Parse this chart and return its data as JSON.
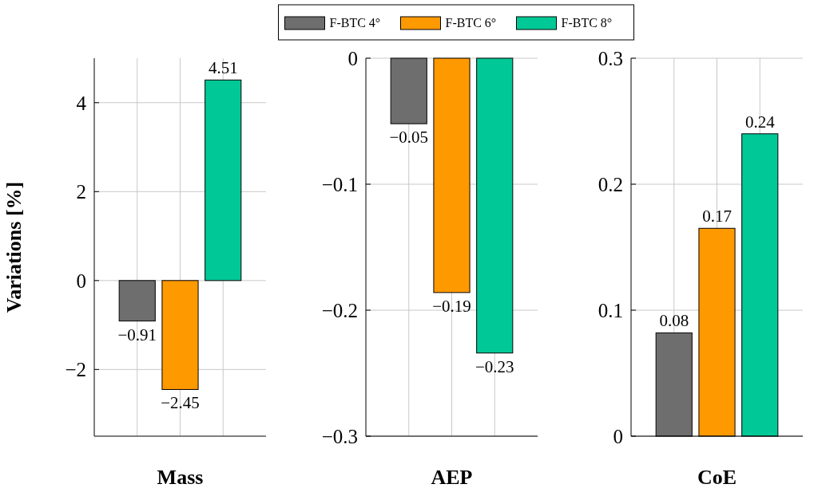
{
  "chart_data": [
    {
      "type": "bar",
      "xlabel": "Mass",
      "ylabel": "Variations [%]",
      "categories": [
        null
      ],
      "legend": "top",
      "grid": true,
      "ylim": [
        -3.5,
        5
      ],
      "yticks": [
        {
          "value": -2,
          "label": "−2"
        },
        0,
        2,
        4
      ],
      "series": [
        {
          "name": "F-BTC 4°",
          "color": "#6e6e6e",
          "values": [
            -0.91
          ],
          "value_labels": [
            "−0.91"
          ]
        },
        {
          "name": "F-BTC 6°",
          "color": "#ff9900",
          "values": [
            -2.45
          ],
          "value_labels": [
            "−2.45"
          ]
        },
        {
          "name": "F-BTC 8°",
          "color": "#00c896",
          "values": [
            4.51
          ],
          "value_labels": [
            "4.51"
          ]
        }
      ]
    },
    {
      "type": "bar",
      "xlabel": "AEP",
      "categories": [
        null
      ],
      "grid": true,
      "ylim": [
        -0.3,
        0
      ],
      "yticks": [
        {
          "value": -0.3,
          "label": "−0.3"
        },
        {
          "value": -0.2,
          "label": "−0.2"
        },
        {
          "value": -0.1,
          "label": "−0.1"
        },
        0
      ],
      "series": [
        {
          "color": "#6e6e6e",
          "values": [
            -0.052
          ],
          "value_labels": [
            "−0.05"
          ]
        },
        {
          "color": "#ff9900",
          "values": [
            -0.186
          ],
          "value_labels": [
            "−0.19"
          ]
        },
        {
          "color": "#00c896",
          "values": [
            -0.234
          ],
          "value_labels": [
            "−0.23"
          ]
        }
      ]
    },
    {
      "type": "bar",
      "xlabel": "CoE",
      "categories": [
        null
      ],
      "grid": true,
      "ylim": [
        0,
        0.3
      ],
      "yticks": [
        0,
        0.1,
        0.2,
        0.3
      ],
      "series": [
        {
          "color": "#6e6e6e",
          "values": [
            0.082
          ],
          "value_labels": [
            "0.08"
          ]
        },
        {
          "color": "#ff9900",
          "values": [
            0.165
          ],
          "value_labels": [
            "0.17"
          ]
        },
        {
          "color": "#00c896",
          "values": [
            0.24
          ],
          "value_labels": [
            "0.24"
          ]
        }
      ]
    }
  ]
}
